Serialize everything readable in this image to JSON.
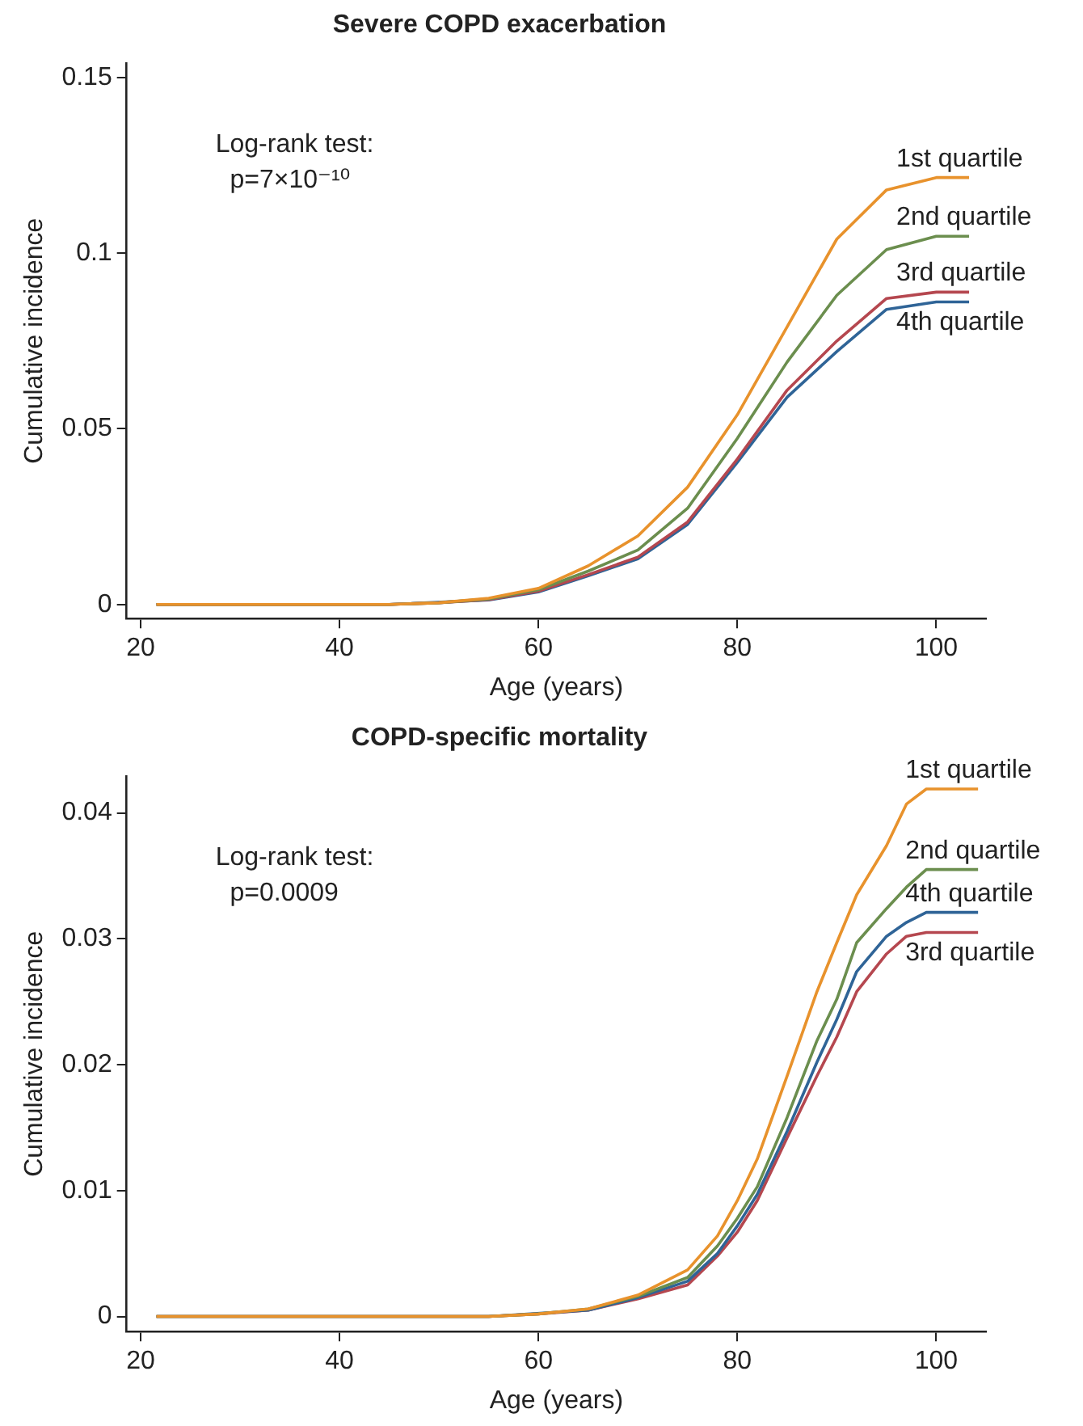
{
  "chart_data": [
    {
      "type": "line",
      "title": "Severe COPD exacerbation",
      "xlabel": "Age (years)",
      "ylabel": "Cumulative incidence",
      "annotations": [
        "Log-rank test:\n  p=7×10⁻¹⁰"
      ],
      "xlim": [
        18.6,
        105
      ],
      "ylim": [
        -0.004,
        0.154
      ],
      "xticks": [
        20,
        40,
        60,
        80,
        100
      ],
      "yticks": [
        0,
        0.05,
        0.1,
        0.15
      ],
      "grid": false,
      "legend": false,
      "marker": "none",
      "line_style": "solid",
      "x": [
        21.6,
        45,
        50,
        55,
        60,
        65,
        70,
        75,
        80,
        85,
        90,
        95,
        100,
        103.3
      ],
      "series": [
        {
          "name": "1st quartile",
          "color": "#e8922c",
          "values": [
            0,
            0,
            0.0005,
            0.0018,
            0.0046,
            0.011,
            0.0195,
            0.0334,
            0.054,
            0.079,
            0.104,
            0.118,
            0.1215,
            0.1215
          ]
        },
        {
          "name": "2nd quartile",
          "color": "#6b8e4e",
          "values": [
            0,
            0,
            0.0005,
            0.0016,
            0.0042,
            0.0095,
            0.0155,
            0.0274,
            0.0473,
            0.069,
            0.088,
            0.101,
            0.1048,
            0.1048
          ]
        },
        {
          "name": "3rd quartile",
          "color": "#b5474f",
          "values": [
            0,
            0,
            0.0005,
            0.0014,
            0.0038,
            0.0085,
            0.0135,
            0.0235,
            0.0414,
            0.061,
            0.075,
            0.0871,
            0.0889,
            0.0889
          ]
        },
        {
          "name": "4th quartile",
          "color": "#2f6497",
          "values": [
            0,
            0,
            null,
            0.0013,
            0.0036,
            0.0082,
            0.013,
            0.0228,
            0.0405,
            0.059,
            0.072,
            0.084,
            0.0861,
            0.0861
          ]
        }
      ]
    },
    {
      "type": "line",
      "title": "COPD-specific mortality",
      "xlabel": "Age (years)",
      "ylabel": "Cumulative incidence",
      "annotations": [
        "Log-rank test:\n  p=0.0009"
      ],
      "xlim": [
        18.6,
        105
      ],
      "ylim": [
        -0.0012,
        0.0429
      ],
      "xticks": [
        20,
        40,
        60,
        80,
        100
      ],
      "yticks": [
        0,
        0.01,
        0.02,
        0.03,
        0.04
      ],
      "grid": false,
      "legend": false,
      "marker": "none",
      "line_style": "solid",
      "x": [
        21.6,
        55,
        60,
        65,
        70,
        75,
        78,
        80,
        82,
        85,
        88,
        90,
        92,
        95,
        97,
        99,
        104.2
      ],
      "series": [
        {
          "name": "1st quartile",
          "color": "#e8922c",
          "values": [
            0,
            0,
            0.0002,
            0.0006,
            0.0017,
            0.0037,
            0.0064,
            0.0092,
            0.0125,
            0.0191,
            0.0258,
            0.0297,
            0.0335,
            0.0374,
            0.0407,
            0.0419,
            0.0419
          ]
        },
        {
          "name": "2nd quartile",
          "color": "#6b8e4e",
          "values": [
            0,
            0,
            0.0002,
            0.0006,
            0.0016,
            0.0031,
            0.0056,
            0.0078,
            0.0103,
            0.0158,
            0.0219,
            0.0252,
            0.0297,
            0.0324,
            0.0341,
            0.0355,
            0.0355
          ]
        },
        {
          "name": "4th quartile",
          "color": "#2f6497",
          "values": [
            0,
            0,
            null,
            0.0005,
            0.0015,
            0.0028,
            0.005,
            0.0072,
            0.0097,
            0.0147,
            0.0202,
            0.0236,
            0.0274,
            0.0302,
            0.0313,
            0.0321,
            0.0321
          ]
        },
        {
          "name": "3rd quartile",
          "color": "#b5474f",
          "values": [
            0,
            0,
            0.0002,
            0.0005,
            0.0014,
            0.0025,
            0.0048,
            0.0067,
            0.0092,
            0.0142,
            0.0191,
            0.0222,
            0.0258,
            0.0288,
            0.0302,
            0.0305,
            0.0305
          ]
        }
      ]
    }
  ]
}
